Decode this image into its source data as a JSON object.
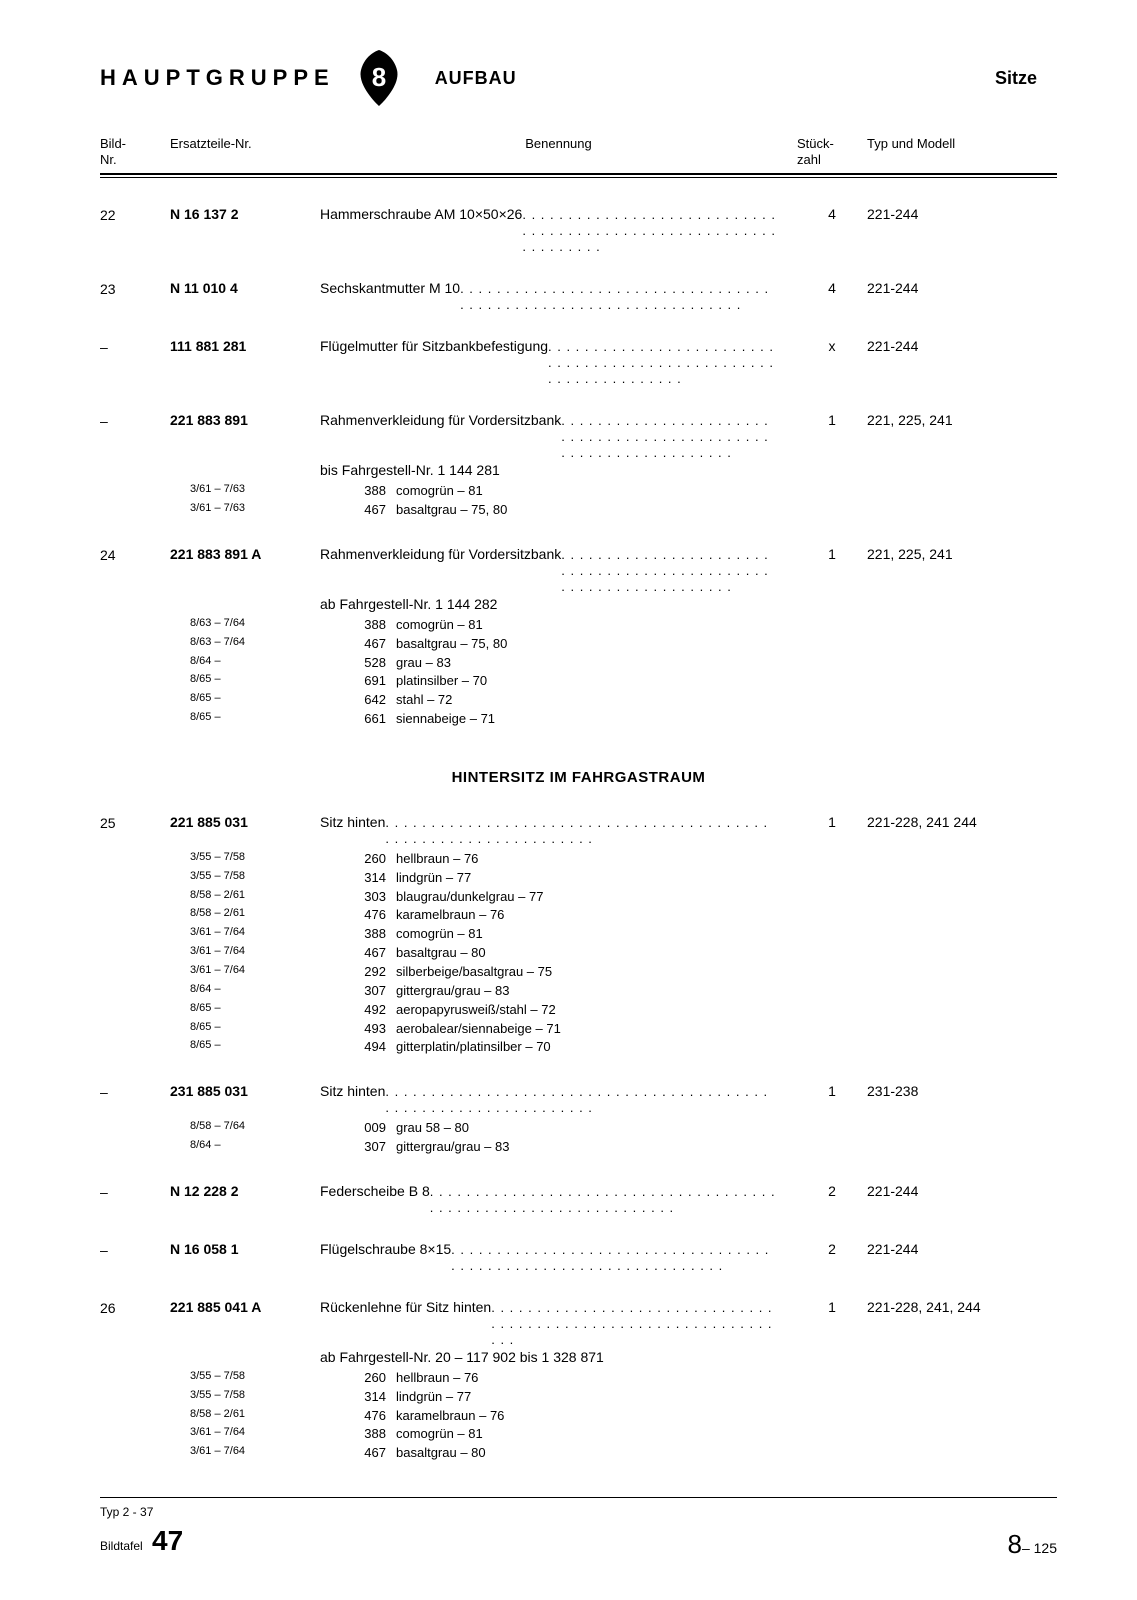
{
  "header": {
    "hauptgruppe": "HAUPTGRUPPE",
    "badge_number": "8",
    "aufbau": "AUFBAU",
    "sitze": "Sitze"
  },
  "columns": {
    "bild": "Bild-\nNr.",
    "ersatz": "Ersatzteile-Nr.",
    "benennung": "Benennung",
    "stueck": "Stück-\nzahl",
    "typ": "Typ und Modell"
  },
  "entries": [
    {
      "bild": "22",
      "part": "N 16 137 2",
      "desc": "Hammerschraube AM 10×50×26",
      "qty": "4",
      "model": "221-244"
    },
    {
      "bild": "23",
      "part": "N 11 010 4",
      "desc": "Sechskantmutter M 10",
      "qty": "4",
      "model": "221-244"
    },
    {
      "bild": "–",
      "part": "111 881 281",
      "desc": "Flügelmutter für Sitzbankbefestigung",
      "qty": "x",
      "model": "221-244"
    },
    {
      "bild": "–",
      "part": "221 883 891",
      "desc": "Rahmenverkleidung für Vordersitzbank",
      "subnote": "bis Fahrgestell-Nr. 1 144 281",
      "qty": "1",
      "model": "221, 225, 241",
      "variants": [
        {
          "date": "3/61 – 7/63",
          "code": "388",
          "name": "comogrün – 81"
        },
        {
          "date": "3/61 – 7/63",
          "code": "467",
          "name": "basaltgrau – 75, 80"
        }
      ]
    },
    {
      "bild": "24",
      "part": "221 883 891 A",
      "desc": "Rahmenverkleidung für Vordersitzbank",
      "subnote": "ab Fahrgestell-Nr. 1 144 282",
      "qty": "1",
      "model": "221, 225, 241",
      "variants": [
        {
          "date": "8/63 – 7/64",
          "code": "388",
          "name": "comogrün – 81"
        },
        {
          "date": "8/63 – 7/64",
          "code": "467",
          "name": "basaltgrau – 75, 80"
        },
        {
          "date": "8/64 –",
          "code": "528",
          "name": "grau – 83"
        },
        {
          "date": "8/65 –",
          "code": "691",
          "name": "platinsilber – 70"
        },
        {
          "date": "8/65 –",
          "code": "642",
          "name": "stahl – 72"
        },
        {
          "date": "8/65 –",
          "code": "661",
          "name": "siennabeige – 71"
        }
      ]
    }
  ],
  "section_heading": "HINTERSITZ IM FAHRGASTRAUM",
  "entries2": [
    {
      "bild": "25",
      "part": "221 885 031",
      "desc": "Sitz hinten",
      "qty": "1",
      "model": "221-228, 241  244",
      "variants": [
        {
          "date": "3/55 – 7/58",
          "code": "260",
          "name": "hellbraun – 76"
        },
        {
          "date": "3/55 – 7/58",
          "code": "314",
          "name": "lindgrün – 77"
        },
        {
          "date": "8/58 – 2/61",
          "code": "303",
          "name": "blaugrau/dunkelgrau – 77"
        },
        {
          "date": "8/58 – 2/61",
          "code": "476",
          "name": "karamelbraun – 76"
        },
        {
          "date": "3/61 – 7/64",
          "code": "388",
          "name": "comogrün – 81"
        },
        {
          "date": "3/61 – 7/64",
          "code": "467",
          "name": "basaltgrau – 80"
        },
        {
          "date": "3/61 – 7/64",
          "code": "292",
          "name": "silberbeige/basaltgrau – 75"
        },
        {
          "date": "8/64 –",
          "code": "307",
          "name": "gittergrau/grau – 83"
        },
        {
          "date": "8/65 –",
          "code": "492",
          "name": "aeropapyrusweiß/stahl – 72"
        },
        {
          "date": "8/65 –",
          "code": "493",
          "name": "aerobalear/siennabeige – 71"
        },
        {
          "date": "8/65 –",
          "code": "494",
          "name": "gitterplatin/platinsilber – 70"
        }
      ]
    },
    {
      "bild": "–",
      "part": "231 885 031",
      "desc": "Sitz hinten",
      "qty": "1",
      "model": "231-238",
      "variants": [
        {
          "date": "8/58 – 7/64",
          "code": "009",
          "name": "grau 58 – 80"
        },
        {
          "date": "8/64 –",
          "code": "307",
          "name": "gittergrau/grau – 83"
        }
      ]
    },
    {
      "bild": "–",
      "part": "N 12 228 2",
      "desc": "Federscheibe B 8",
      "qty": "2",
      "model": "221-244"
    },
    {
      "bild": "–",
      "part": "N 16 058 1",
      "desc": "Flügelschraube 8×15",
      "qty": "2",
      "model": "221-244"
    },
    {
      "bild": "26",
      "part": "221 885 041 A",
      "desc": "Rückenlehne für Sitz hinten",
      "subnote": "ab Fahrgestell-Nr. 20 – 117 902 bis 1 328 871",
      "qty": "1",
      "model": "221-228, 241, 244",
      "variants": [
        {
          "date": "3/55 – 7/58",
          "code": "260",
          "name": "hellbraun – 76"
        },
        {
          "date": "3/55 – 7/58",
          "code": "314",
          "name": "lindgrün – 77"
        },
        {
          "date": "8/58 – 2/61",
          "code": "476",
          "name": "karamelbraun – 76"
        },
        {
          "date": "3/61 – 7/64",
          "code": "388",
          "name": "comogrün – 81"
        },
        {
          "date": "3/61 – 7/64",
          "code": "467",
          "name": "basaltgrau – 80"
        }
      ]
    }
  ],
  "footer": {
    "typ": "Typ 2 - 37",
    "bildtafel_label": "Bildtafel",
    "bildtafel_num": "47",
    "page_main": "8",
    "page_sub": "– 125"
  }
}
